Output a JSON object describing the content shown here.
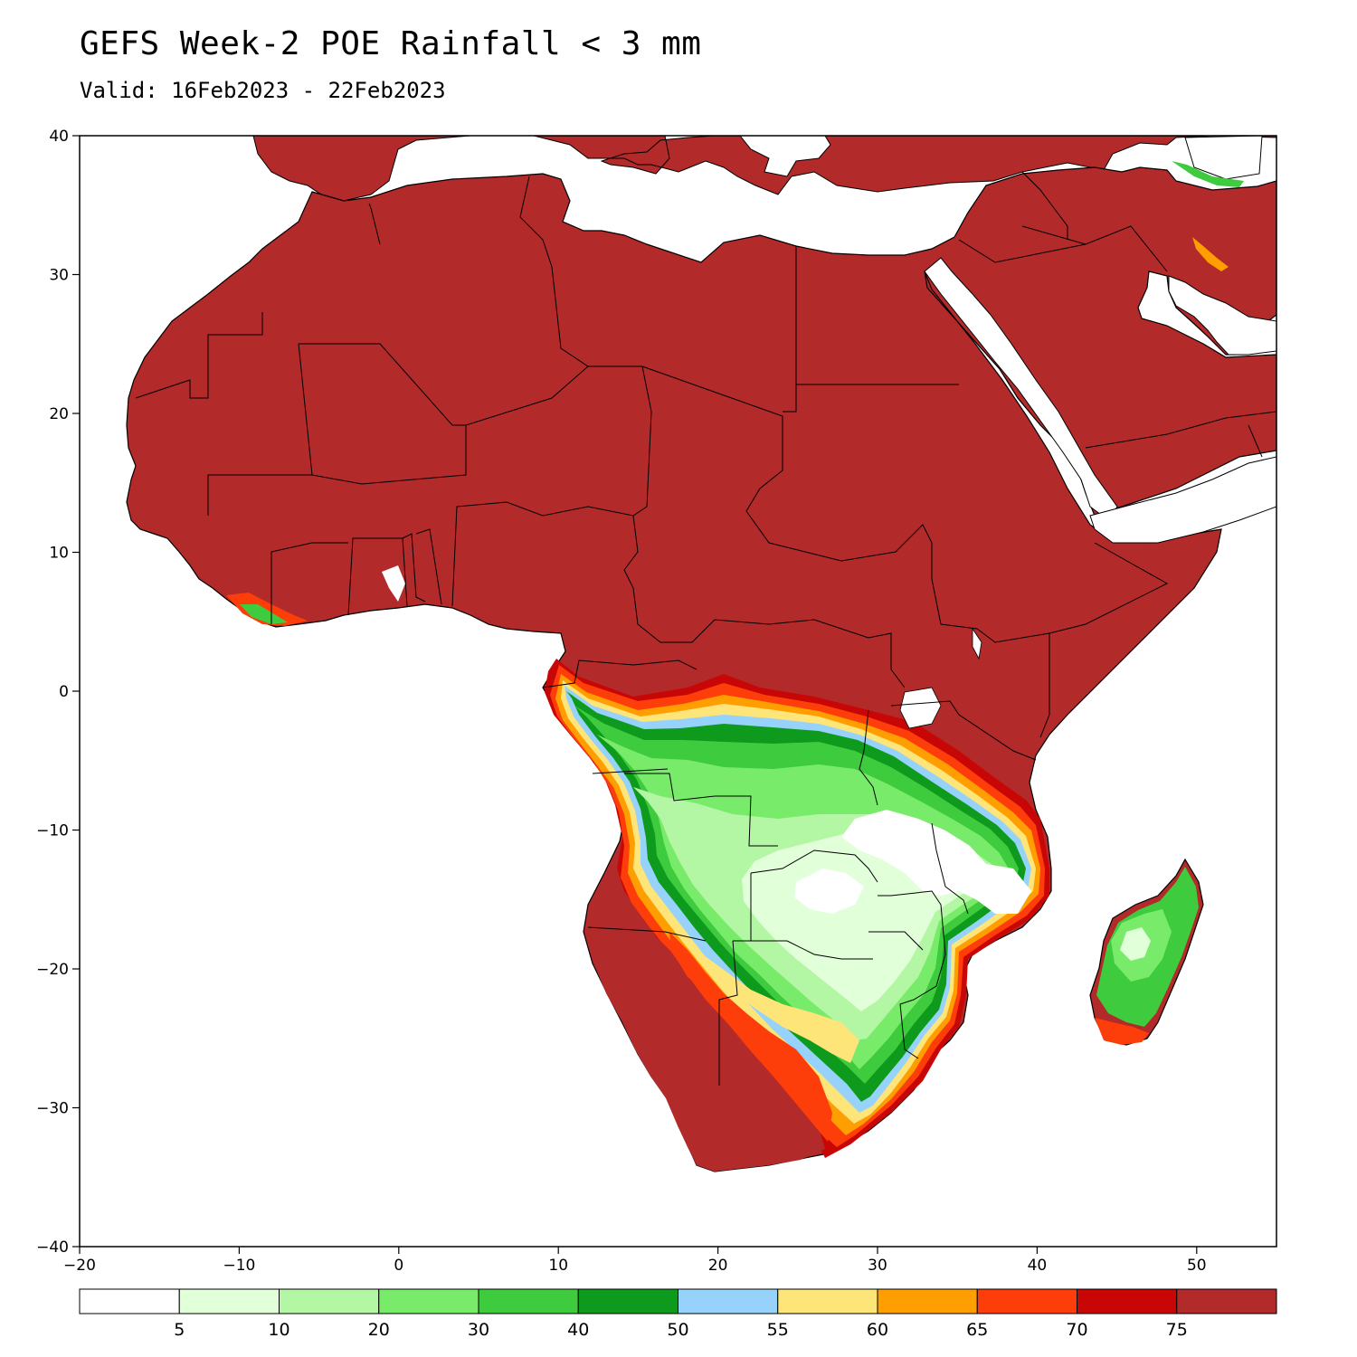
{
  "title": "GEFS Week-2 POE Rainfall < 3 mm",
  "subtitle": "Valid: 16Feb2023 - 22Feb2023",
  "map": {
    "lon_range": [
      -20,
      55
    ],
    "lat_range": [
      -40,
      40
    ],
    "x_ticks": [
      {
        "value": -20,
        "label": "−20"
      },
      {
        "value": -10,
        "label": "−10"
      },
      {
        "value": 0,
        "label": "0"
      },
      {
        "value": 10,
        "label": "10"
      },
      {
        "value": 20,
        "label": "20"
      },
      {
        "value": 30,
        "label": "30"
      },
      {
        "value": 40,
        "label": "40"
      },
      {
        "value": 50,
        "label": "50"
      }
    ],
    "y_ticks": [
      {
        "value": 40,
        "label": "40"
      },
      {
        "value": 30,
        "label": "30"
      },
      {
        "value": 20,
        "label": "20"
      },
      {
        "value": 10,
        "label": "10"
      },
      {
        "value": 0,
        "label": "0"
      },
      {
        "value": -10,
        "label": "−10"
      },
      {
        "value": -20,
        "label": "−20"
      },
      {
        "value": -30,
        "label": "−30"
      },
      {
        "value": -40,
        "label": "−40"
      }
    ],
    "colors": {
      "dry": "#b22a2a",
      "ocean": "#ffffff",
      "c5": "#e1ffd8",
      "c10": "#b3f6a3",
      "c20": "#78ec6a",
      "c30": "#3ecb3e",
      "c40": "#0e9a1c",
      "c50": "#96d2fa",
      "c55": "#fee57a",
      "c60": "#fe9e00",
      "c65": "#fe3e0a",
      "c70": "#c90606"
    }
  },
  "colorbar": {
    "colors": [
      "#ffffff",
      "#e1ffd8",
      "#b3f6a3",
      "#78ec6a",
      "#3ecb3e",
      "#0e9a1c",
      "#96d2fa",
      "#fee57a",
      "#fe9e00",
      "#fe3e0a",
      "#c90606",
      "#b22a2a"
    ],
    "labels": [
      "5",
      "10",
      "20",
      "30",
      "40",
      "50",
      "55",
      "60",
      "65",
      "70",
      "75"
    ]
  }
}
